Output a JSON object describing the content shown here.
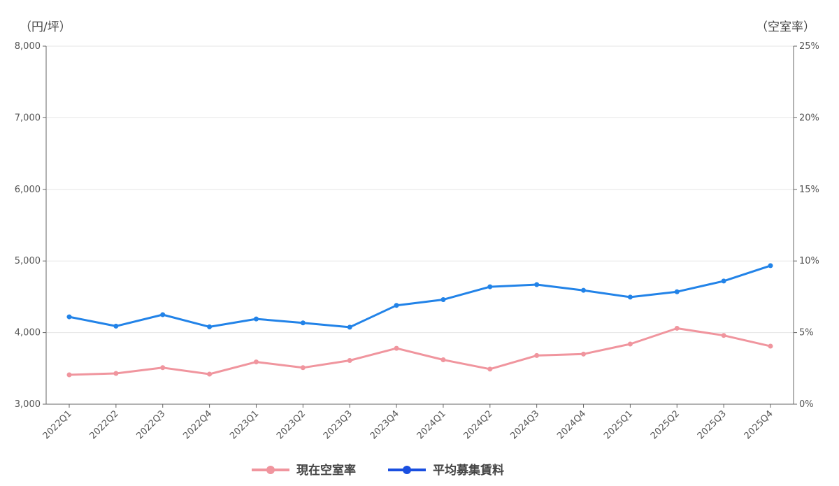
{
  "chart_data": {
    "type": "line",
    "dual_axis": true,
    "x": [
      "2022Q1",
      "2022Q2",
      "2022Q3",
      "2022Q4",
      "2023Q1",
      "2023Q2",
      "2023Q3",
      "2023Q4",
      "2024Q1",
      "2024Q2",
      "2024Q3",
      "2024Q4",
      "2025Q1",
      "2025Q2",
      "2025Q3",
      "2025Q4"
    ],
    "y_left": {
      "unit_label": "（円/坪）",
      "ylim": [
        3000,
        8000
      ],
      "ticks": [
        "3,000",
        "4,000",
        "5,000",
        "6,000",
        "7,000",
        "8,000"
      ],
      "tick_values": [
        3000,
        4000,
        5000,
        6000,
        7000,
        8000
      ]
    },
    "y_right": {
      "unit_label": "（空室率）",
      "ylim": [
        0,
        25
      ],
      "ticks": [
        "0%",
        "5%",
        "10%",
        "15%",
        "20%",
        "25%"
      ],
      "tick_values": [
        0,
        5,
        10,
        15,
        20,
        25
      ]
    },
    "series": [
      {
        "name": "現在空室率",
        "axis": "right",
        "color": "#f0959e",
        "values": [
          2.05,
          2.15,
          2.55,
          2.1,
          2.95,
          2.55,
          3.05,
          3.9,
          3.1,
          2.45,
          3.4,
          3.5,
          4.2,
          5.3,
          4.8,
          4.05
        ]
      },
      {
        "name": "平均募集賃料",
        "axis": "left",
        "color": "#2283e8",
        "values": [
          4220,
          4090,
          4250,
          4080,
          4190,
          4135,
          4075,
          4380,
          4460,
          4640,
          4670,
          4590,
          4495,
          4570,
          4720,
          4935
        ]
      }
    ],
    "grid": true,
    "legend_position": "bottom"
  }
}
